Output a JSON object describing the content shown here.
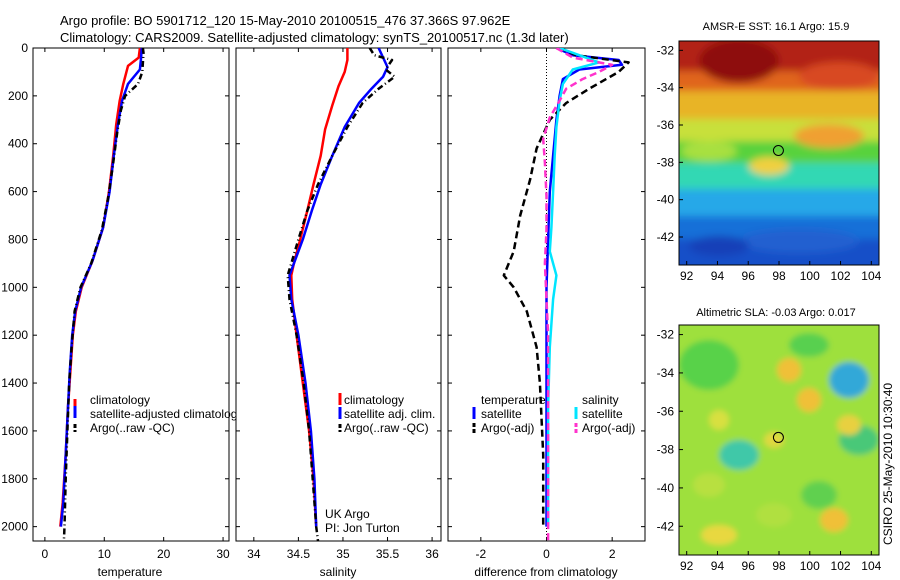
{
  "header": {
    "line1": "Argo profile: BO 5901712_120 15-May-2010 20100515_476 37.366S 97.962E",
    "line2": "Climatology: CARS2009. Satellite-adjusted climatology: synTS_20100517.nc (1.3d later)"
  },
  "side_label": "CSIRO 25-May-2010 10:30:40",
  "colors": {
    "climatology": "#ff0000",
    "satellite": "#0000ff",
    "argo": "#000000",
    "satellite_salinity": "#00e5ff",
    "argo_salinity_adj": "#ff33cc"
  },
  "chart_data": [
    {
      "type": "line",
      "id": "temperature",
      "xlabel": "temperature",
      "ylabel": "",
      "xlim": [
        -2,
        31
      ],
      "ylim": [
        2060,
        0
      ],
      "xticks": [
        0,
        10,
        20,
        30
      ],
      "yticks": [
        0,
        200,
        400,
        600,
        800,
        1000,
        1200,
        1400,
        1600,
        1800,
        2000
      ],
      "legend": {
        "position": "lower-right",
        "entries": [
          "climatology",
          "satellite-adjusted climatolog",
          "Argo(..raw -QC)"
        ]
      },
      "series": [
        {
          "name": "climatology",
          "color": "#ff0000",
          "style": "solid",
          "points": [
            [
              16,
              0
            ],
            [
              15.8,
              40
            ],
            [
              14,
              75
            ],
            [
              13.2,
              150
            ],
            [
              12.6,
              220
            ],
            [
              12,
              320
            ],
            [
              11.5,
              450
            ],
            [
              10.8,
              600
            ],
            [
              9.8,
              750
            ],
            [
              8,
              890
            ],
            [
              6.2,
              1000
            ],
            [
              5.2,
              1100
            ],
            [
              4.7,
              1200
            ],
            [
              4.3,
              1350
            ],
            [
              3.9,
              1500
            ],
            [
              3.5,
              1700
            ],
            [
              3,
              1900
            ],
            [
              2.6,
              2000
            ]
          ]
        },
        {
          "name": "satellite-adjusted climatology",
          "color": "#0000ff",
          "style": "solid",
          "points": [
            [
              16.3,
              0
            ],
            [
              16.2,
              40
            ],
            [
              16,
              90
            ],
            [
              14,
              150
            ],
            [
              13,
              220
            ],
            [
              12.3,
              320
            ],
            [
              11.6,
              450
            ],
            [
              10.9,
              600
            ],
            [
              9.8,
              750
            ],
            [
              8,
              890
            ],
            [
              6.1,
              1000
            ],
            [
              5.1,
              1100
            ],
            [
              4.6,
              1200
            ],
            [
              4.2,
              1350
            ],
            [
              3.9,
              1500
            ],
            [
              3.5,
              1700
            ],
            [
              3.1,
              1900
            ],
            [
              2.7,
              2000
            ]
          ]
        },
        {
          "name": "Argo(..raw -QC)",
          "color": "#000000",
          "style": "dashdot",
          "points": [
            [
              16.5,
              0
            ],
            [
              16.6,
              20
            ],
            [
              16.5,
              60
            ],
            [
              16.4,
              100
            ],
            [
              15.7,
              150
            ],
            [
              13.5,
              200
            ],
            [
              12.8,
              260
            ],
            [
              12.2,
              350
            ],
            [
              11.5,
              480
            ],
            [
              10.7,
              620
            ],
            [
              9.6,
              760
            ],
            [
              7.8,
              900
            ],
            [
              6,
              1000
            ],
            [
              5,
              1100
            ],
            [
              4.5,
              1250
            ],
            [
              4.1,
              1400
            ],
            [
              3.8,
              1600
            ],
            [
              3.5,
              1800
            ],
            [
              3.3,
              2000
            ],
            [
              3.2,
              2060
            ]
          ]
        }
      ]
    },
    {
      "type": "line",
      "id": "salinity",
      "xlabel": "salinity",
      "ylabel": "",
      "xlim": [
        33.8,
        36.1
      ],
      "ylim": [
        2060,
        0
      ],
      "xticks": [
        34,
        34.5,
        35,
        35.5,
        36
      ],
      "legend": {
        "position": "lower-right",
        "entries": [
          "climatology",
          "satellite adj. clim.",
          "Argo(..raw -QC)"
        ]
      },
      "annotation": [
        "UK Argo",
        "PI: Jon Turton"
      ],
      "series": [
        {
          "name": "climatology",
          "color": "#ff0000",
          "style": "solid",
          "points": [
            [
              35.05,
              0
            ],
            [
              35.05,
              50
            ],
            [
              35.02,
              100
            ],
            [
              34.95,
              160
            ],
            [
              34.88,
              240
            ],
            [
              34.8,
              340
            ],
            [
              34.75,
              450
            ],
            [
              34.67,
              570
            ],
            [
              34.6,
              680
            ],
            [
              34.52,
              800
            ],
            [
              34.45,
              900
            ],
            [
              34.42,
              950
            ],
            [
              34.43,
              1050
            ],
            [
              34.48,
              1200
            ],
            [
              34.55,
              1400
            ],
            [
              34.62,
              1600
            ],
            [
              34.67,
              1800
            ],
            [
              34.7,
              2000
            ]
          ]
        },
        {
          "name": "satellite adj. clim.",
          "color": "#0000ff",
          "style": "solid",
          "points": [
            [
              35.4,
              0
            ],
            [
              35.45,
              40
            ],
            [
              35.5,
              80
            ],
            [
              35.45,
              120
            ],
            [
              35.32,
              170
            ],
            [
              35.18,
              230
            ],
            [
              35.02,
              330
            ],
            [
              34.88,
              450
            ],
            [
              34.75,
              570
            ],
            [
              34.65,
              680
            ],
            [
              34.55,
              800
            ],
            [
              34.45,
              900
            ],
            [
              34.4,
              950
            ],
            [
              34.42,
              1050
            ],
            [
              34.5,
              1200
            ],
            [
              34.58,
              1400
            ],
            [
              34.64,
              1600
            ],
            [
              34.68,
              1800
            ],
            [
              34.7,
              2000
            ]
          ]
        },
        {
          "name": "Argo(..raw -QC)",
          "color": "#000000",
          "style": "dashdot",
          "points": [
            [
              35.3,
              0
            ],
            [
              35.35,
              30
            ],
            [
              35.55,
              50
            ],
            [
              35.48,
              90
            ],
            [
              35.58,
              120
            ],
            [
              35.4,
              170
            ],
            [
              35.22,
              230
            ],
            [
              35.05,
              330
            ],
            [
              34.88,
              450
            ],
            [
              34.72,
              570
            ],
            [
              34.6,
              680
            ],
            [
              34.5,
              800
            ],
            [
              34.42,
              900
            ],
            [
              34.38,
              950
            ],
            [
              34.4,
              1050
            ],
            [
              34.48,
              1200
            ],
            [
              34.56,
              1400
            ],
            [
              34.62,
              1600
            ],
            [
              34.66,
              1800
            ],
            [
              34.7,
              2000
            ],
            [
              34.72,
              2060
            ]
          ]
        }
      ]
    },
    {
      "type": "line",
      "id": "difference",
      "xlabel": "difference from climatology",
      "ylabel": "",
      "xlim": [
        -3,
        3
      ],
      "ylim": [
        2060,
        0
      ],
      "xticks": [
        -2,
        0,
        2
      ],
      "legend": {
        "position": "lower",
        "left_title": "temperature",
        "right_title": "salinity",
        "left_entries": [
          "satellite",
          "Argo(-adj)"
        ],
        "right_entries": [
          "satellite",
          "Argo(-adj)"
        ]
      },
      "series": [
        {
          "name": "temperature satellite",
          "color": "#0000ff",
          "style": "solid",
          "points": [
            [
              0.3,
              0
            ],
            [
              0.8,
              30
            ],
            [
              2.2,
              50
            ],
            [
              2.3,
              70
            ],
            [
              1,
              90
            ],
            [
              0.5,
              130
            ],
            [
              0.4,
              200
            ],
            [
              0.3,
              300
            ],
            [
              0.2,
              450
            ],
            [
              0.1,
              600
            ],
            [
              0.05,
              800
            ],
            [
              0,
              1000
            ],
            [
              0,
              1400
            ],
            [
              0,
              2000
            ]
          ]
        },
        {
          "name": "temperature Argo(-adj)",
          "color": "#000000",
          "style": "dashed",
          "points": [
            [
              0.4,
              0
            ],
            [
              0.9,
              30
            ],
            [
              2.5,
              60
            ],
            [
              2.2,
              100
            ],
            [
              1.3,
              170
            ],
            [
              0.6,
              230
            ],
            [
              0.1,
              300
            ],
            [
              -0.3,
              420
            ],
            [
              -0.5,
              550
            ],
            [
              -0.8,
              700
            ],
            [
              -1,
              850
            ],
            [
              -1.3,
              950
            ],
            [
              -1,
              1000
            ],
            [
              -0.6,
              1100
            ],
            [
              -0.3,
              1250
            ],
            [
              -0.2,
              1400
            ],
            [
              -0.1,
              1700
            ],
            [
              -0.1,
              1900
            ],
            [
              -0.1,
              2000
            ]
          ]
        },
        {
          "name": "salinity satellite",
          "color": "#00e5ff",
          "style": "solid",
          "points": [
            [
              0.4,
              0
            ],
            [
              1,
              30
            ],
            [
              1.6,
              60
            ],
            [
              0.8,
              90
            ],
            [
              0.5,
              150
            ],
            [
              0.4,
              220
            ],
            [
              0.3,
              330
            ],
            [
              0.25,
              450
            ],
            [
              0.2,
              600
            ],
            [
              0.15,
              750
            ],
            [
              0.1,
              850
            ],
            [
              0.3,
              950
            ],
            [
              0.2,
              1050
            ],
            [
              0.1,
              1250
            ],
            [
              0.05,
              1500
            ],
            [
              0.05,
              2000
            ]
          ]
        },
        {
          "name": "salinity Argo(-adj)",
          "color": "#ff33cc",
          "style": "dashed",
          "points": [
            [
              0.3,
              0
            ],
            [
              0.8,
              40
            ],
            [
              2,
              70
            ],
            [
              1.6,
              100
            ],
            [
              1.1,
              130
            ],
            [
              0.6,
              170
            ],
            [
              0.4,
              220
            ],
            [
              0.1,
              290
            ],
            [
              -0.1,
              380
            ],
            [
              -0.05,
              480
            ],
            [
              0,
              620
            ],
            [
              0,
              760
            ],
            [
              -0.05,
              900
            ],
            [
              0,
              1050
            ],
            [
              0.05,
              1200
            ],
            [
              0.05,
              1400
            ],
            [
              0.05,
              1800
            ],
            [
              0.05,
              2060
            ]
          ]
        }
      ]
    },
    {
      "type": "heatmap",
      "id": "sst",
      "title": "AMSR-E SST: 16.1 Argo: 15.9",
      "xlim": [
        91.5,
        104.5
      ],
      "ylim": [
        -43.5,
        -31.5
      ],
      "xticks": [
        92,
        94,
        96,
        98,
        100,
        102,
        104
      ],
      "yticks": [
        -32,
        -34,
        -36,
        -38,
        -40,
        -42
      ],
      "marker": {
        "lon": 97.962,
        "lat": -37.366
      },
      "field": "sst"
    },
    {
      "type": "heatmap",
      "id": "sla",
      "title": "Altimetric SLA: -0.03 Argo: 0.017",
      "xlim": [
        91.5,
        104.5
      ],
      "ylim": [
        -43.5,
        -31.5
      ],
      "xticks": [
        92,
        94,
        96,
        98,
        100,
        102,
        104
      ],
      "yticks": [
        -32,
        -34,
        -36,
        -38,
        -40,
        -42
      ],
      "marker": {
        "lon": 97.962,
        "lat": -37.366
      },
      "field": "sla"
    }
  ]
}
